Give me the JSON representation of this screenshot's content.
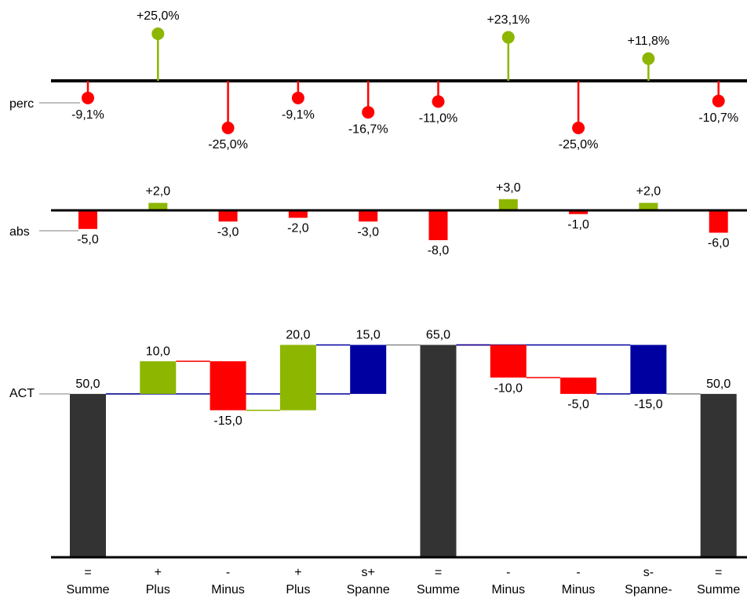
{
  "chart_data": [
    {
      "type": "lollipop",
      "label": "perc",
      "values": [
        -9.1,
        25.0,
        -25.0,
        -9.1,
        -16.7,
        -11.0,
        23.1,
        -25.0,
        11.8,
        -10.7
      ],
      "value_labels": [
        "-9,1%",
        "+25,0%",
        "-25,0%",
        "-9,1%",
        "-16,7%",
        "-11,0%",
        "+23,1%",
        "-25,0%",
        "+11,8%",
        "-10,7%"
      ],
      "ylim": [
        -30,
        30
      ],
      "color_positive": "#8db600",
      "color_negative": "#ff0000"
    },
    {
      "type": "bar",
      "label": "abs",
      "values": [
        -5,
        2,
        -3,
        -2,
        -3,
        -8,
        3,
        -1,
        2,
        -6
      ],
      "value_labels": [
        "-5,0",
        "+2,0",
        "-3,0",
        "-2,0",
        "-3,0",
        "-8,0",
        "+3,0",
        "-1,0",
        "+2,0",
        "-6,0"
      ],
      "ylim": [
        -10,
        10
      ],
      "color_positive": "#8db600",
      "color_negative": "#ff0000"
    },
    {
      "type": "waterfall",
      "label": "ACT",
      "symbols": [
        "=",
        "+",
        "-",
        "+",
        "s+",
        "=",
        "-",
        "-",
        "s-",
        "="
      ],
      "categories": [
        "Summe",
        "Plus",
        "Minus",
        "Plus",
        "Spanne",
        "Summe",
        "Minus",
        "Minus",
        "Spanne-",
        "Summe"
      ],
      "values": [
        50,
        10,
        -15,
        20,
        15,
        65,
        -10,
        -5,
        -15,
        50
      ],
      "value_labels": [
        "50,0",
        "10,0",
        "-15,0",
        "20,0",
        "15,0",
        "65,0",
        "-10,0",
        "-5,0",
        "-15,0",
        "50,0"
      ],
      "ylim": [
        0,
        80
      ],
      "color_total": "#333333",
      "color_increase": "#8db600",
      "color_decrease": "#ff0000",
      "color_span": "#0000a0"
    }
  ]
}
